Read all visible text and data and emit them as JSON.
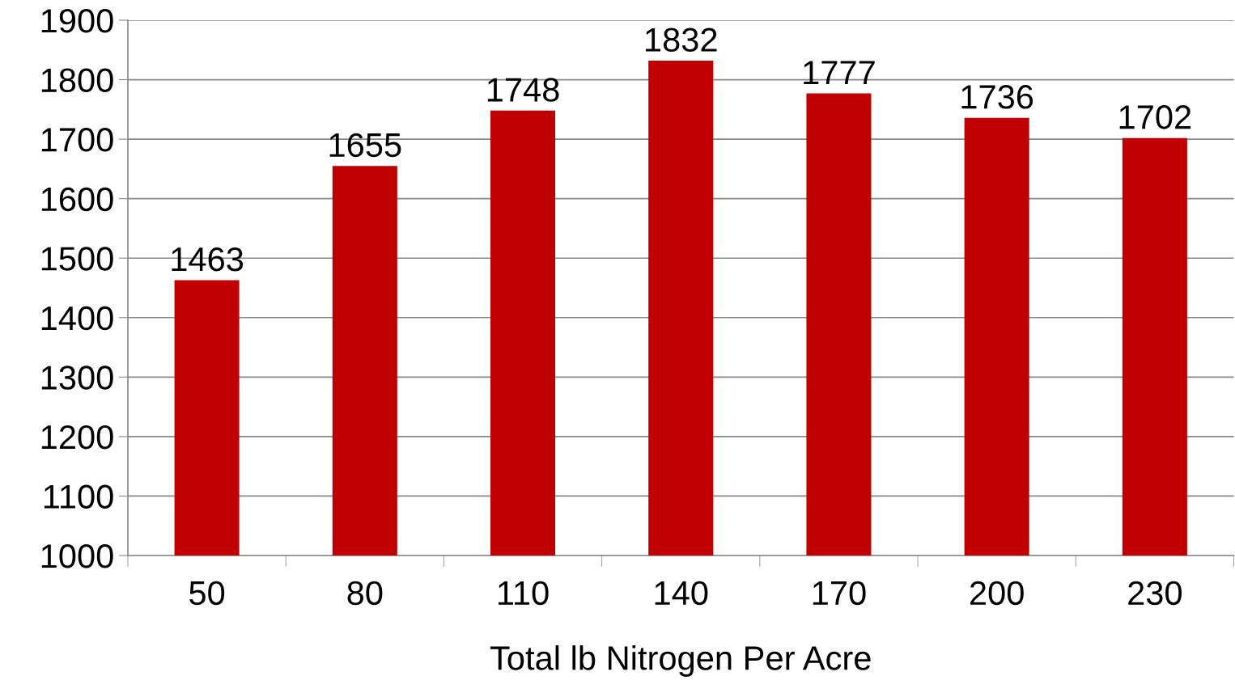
{
  "chart_data": {
    "type": "bar",
    "xlabel": "Total lb Nitrogen Per Acre",
    "categories": [
      "50",
      "80",
      "110",
      "140",
      "170",
      "200",
      "230"
    ],
    "values": [
      1463,
      1655,
      1748,
      1832,
      1777,
      1736,
      1702
    ],
    "color": "#c00000",
    "ylim": [
      1000,
      1900
    ],
    "yticks": [
      1000,
      1100,
      1200,
      1300,
      1400,
      1500,
      1600,
      1700,
      1800,
      1900
    ],
    "grid": "y",
    "data_labels": true
  }
}
